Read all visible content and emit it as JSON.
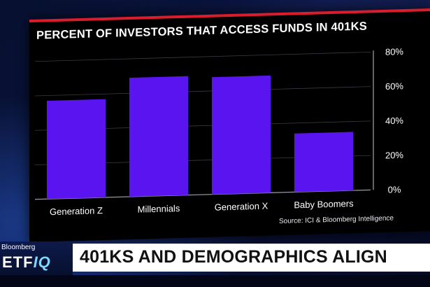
{
  "chart_data": {
    "type": "bar",
    "title": "PERCENT OF INVESTORS THAT ACCESS FUNDS IN 401KS",
    "categories": [
      "Generation Z",
      "Millennials",
      "Generation X",
      "Baby Boomers"
    ],
    "values": [
      57,
      69,
      68,
      34
    ],
    "ylim": [
      0,
      80
    ],
    "yticks": [
      "0%",
      "20%",
      "40%",
      "60%",
      "80%"
    ],
    "ytick_values": [
      0,
      20,
      40,
      60,
      80
    ],
    "yaxis_side": "right",
    "grid": true,
    "bar_color": "#5a14f0",
    "source": "Source: ICI & Bloomberg Intelligence"
  },
  "brand": {
    "name": "Bloomberg",
    "show_prefix": "ETF",
    "show_suffix": "IQ"
  },
  "headline": "401KS AND DEMOGRAPHICS ALIGN",
  "colors": {
    "accent_red": "#d81e2c",
    "iq_blue": "#7fd6ff"
  }
}
